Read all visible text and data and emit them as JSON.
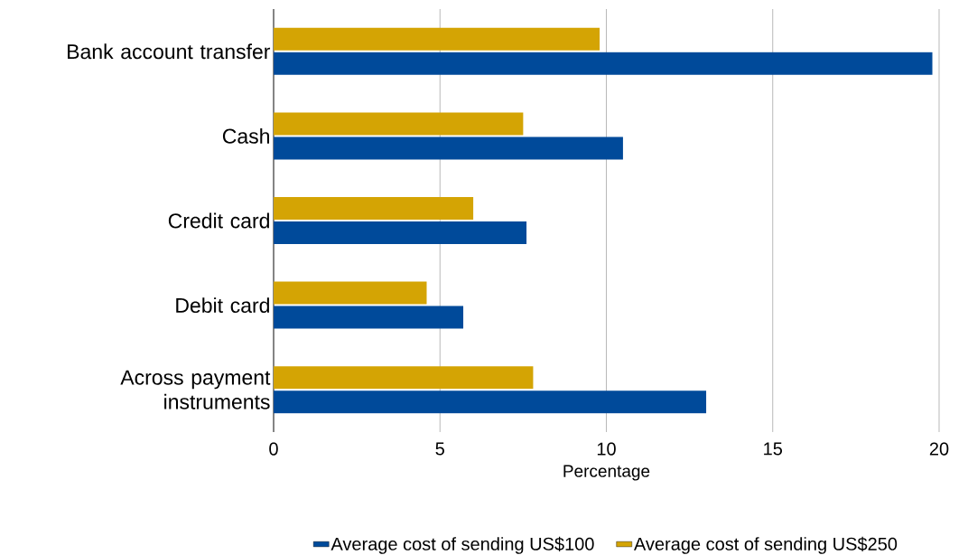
{
  "chart_data": {
    "type": "bar",
    "orientation": "horizontal",
    "xlabel": "Percentage",
    "categories": [
      "Bank account transfer",
      "Cash",
      "Credit card",
      "Debit card",
      "Across payment instruments"
    ],
    "series": [
      {
        "name": "Average cost of sending US$100",
        "color": "#004a9a",
        "values": [
          19.8,
          10.5,
          7.6,
          5.7,
          13.0
        ]
      },
      {
        "name": "Average cost of sending US$250",
        "color": "#d4a404",
        "values": [
          9.8,
          7.5,
          6.0,
          4.6,
          7.8
        ]
      }
    ],
    "xlim": [
      0,
      20
    ],
    "xticks": [
      0,
      5,
      10,
      15,
      20
    ],
    "grid": "x",
    "legend": "bottom"
  }
}
